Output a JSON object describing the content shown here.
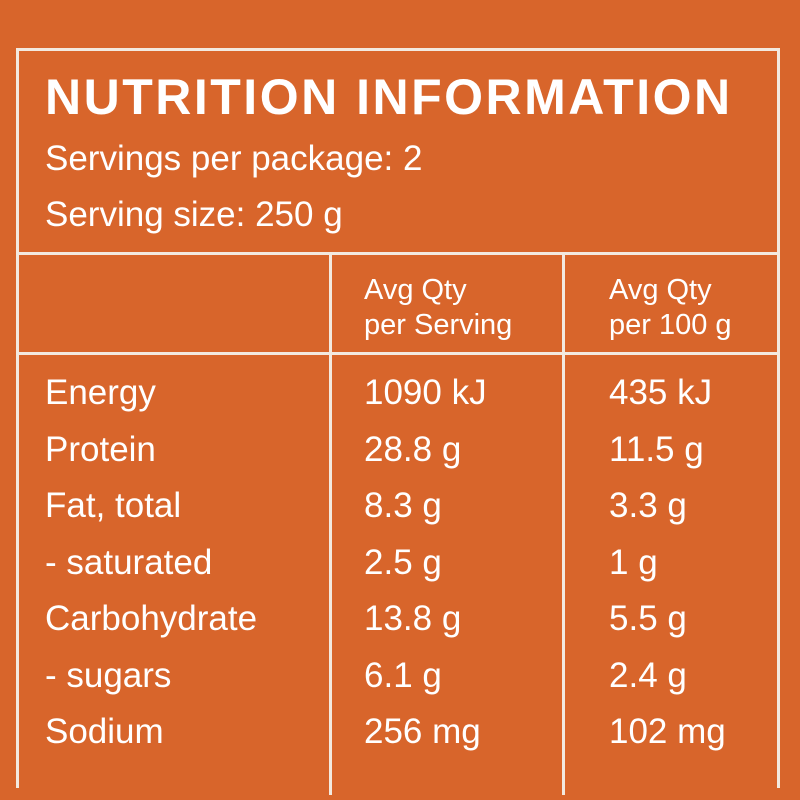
{
  "panel": {
    "title": "NUTRITION INFORMATION",
    "servings_per_package": "Servings per package: 2",
    "serving_size": "Serving size: 250 g"
  },
  "columns": {
    "per_serving": [
      "Avg Qty",
      "per Serving"
    ],
    "per_100g": [
      "Avg Qty",
      "per 100 g"
    ]
  },
  "rows": [
    {
      "label": "Energy",
      "per_serving": "1090 kJ",
      "per_100g": "435 kJ"
    },
    {
      "label": "Protein",
      "per_serving": "28.8 g",
      "per_100g": "11.5 g"
    },
    {
      "label": "Fat, total",
      "per_serving": "8.3 g",
      "per_100g": "3.3 g"
    },
    {
      "label": "- saturated",
      "per_serving": "2.5 g",
      "per_100g": "1 g"
    },
    {
      "label": "Carbohydrate",
      "per_serving": "13.8 g",
      "per_100g": "5.5 g"
    },
    {
      "label": "- sugars",
      "per_serving": "6.1 g",
      "per_100g": "2.4 g"
    },
    {
      "label": "Sodium",
      "per_serving": "256 mg",
      "per_100g": "102 mg"
    }
  ],
  "colors": {
    "background": "#d8652b",
    "text": "#ffffff",
    "rule": "#f3e9df"
  }
}
